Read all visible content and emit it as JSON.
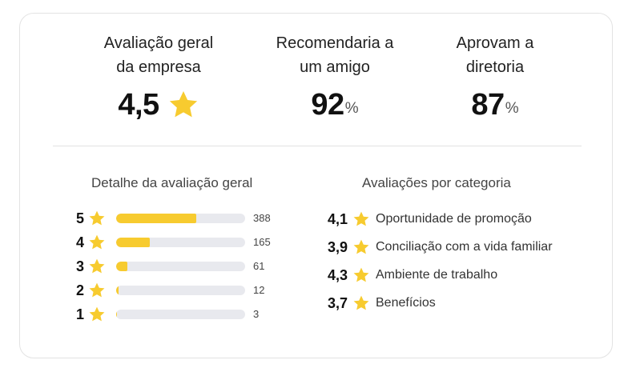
{
  "colors": {
    "star": "#f7cb2f",
    "bar_track": "#e8e9ee",
    "bar_fill": "#f7cb2f"
  },
  "metrics": {
    "overall": {
      "title_line1": "Avaliação geral",
      "title_line2": "da empresa",
      "value": "4,5",
      "icon": "star-icon"
    },
    "recommend": {
      "title_line1": "Recomendaria a",
      "title_line2": "um amigo",
      "value": "92",
      "unit": "%"
    },
    "approve": {
      "title_line1": "Aprovam a",
      "title_line2": "diretoria",
      "value": "87",
      "unit": "%"
    }
  },
  "breakdown": {
    "title": "Detalhe da avaliação geral",
    "rows": [
      {
        "stars": "5",
        "count": "388",
        "fraction": 0.62
      },
      {
        "stars": "4",
        "count": "165",
        "fraction": 0.26
      },
      {
        "stars": "3",
        "count": "61",
        "fraction": 0.09
      },
      {
        "stars": "2",
        "count": "12",
        "fraction": 0.02
      },
      {
        "stars": "1",
        "count": "3",
        "fraction": 0.005
      }
    ]
  },
  "categories": {
    "title": "Avaliações por categoria",
    "items": [
      {
        "score": "4,1",
        "label": "Oportunidade de promoção"
      },
      {
        "score": "3,9",
        "label": "Conciliação com a vida familiar"
      },
      {
        "score": "4,3",
        "label": "Ambiente de trabalho"
      },
      {
        "score": "3,7",
        "label": "Benefícios"
      }
    ]
  }
}
